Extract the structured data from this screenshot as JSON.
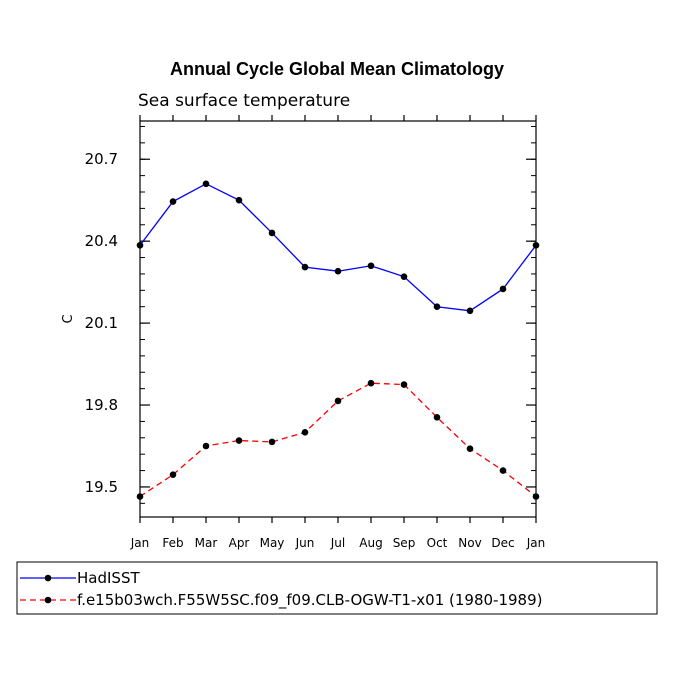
{
  "chart_data": {
    "type": "line",
    "title": "Annual Cycle Global Mean Climatology",
    "subtitle": "Sea surface temperature",
    "xlabel": "",
    "ylabel": "C",
    "categories": [
      "Jan",
      "Feb",
      "Mar",
      "Apr",
      "May",
      "Jun",
      "Jul",
      "Aug",
      "Sep",
      "Oct",
      "Nov",
      "Dec",
      "Jan"
    ],
    "yticks": [
      "20.7",
      "20.4",
      "20.1",
      "19.8",
      "19.5"
    ],
    "ytick_values": [
      20.7,
      20.4,
      20.1,
      19.8,
      19.5
    ],
    "ylim": [
      19.39,
      20.84
    ],
    "legend_position": "bottom-left",
    "series": [
      {
        "name": "HadISST",
        "color": "#0000ff",
        "style": "solid",
        "values": [
          20.385,
          20.545,
          20.61,
          20.55,
          20.43,
          20.305,
          20.29,
          20.31,
          20.27,
          20.16,
          20.145,
          20.225,
          20.385
        ]
      },
      {
        "name": "f.e15b03wch.F55W5SC.f09_f09.CLB-OGW-T1-x01 (1980-1989)",
        "color": "#ff0000",
        "style": "dashed",
        "values": [
          19.465,
          19.545,
          19.65,
          19.67,
          19.665,
          19.7,
          19.815,
          19.88,
          19.875,
          19.755,
          19.64,
          19.56,
          19.465
        ]
      }
    ]
  }
}
